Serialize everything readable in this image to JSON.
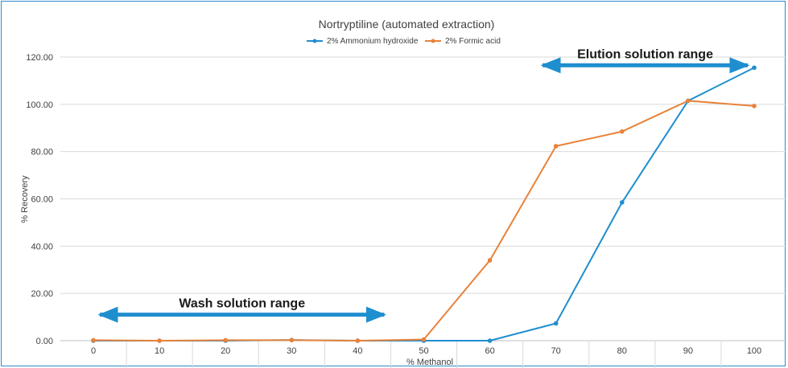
{
  "chart_data": {
    "type": "line",
    "title": "Nortryptiline (automated extraction)",
    "xlabel": "% Methanol",
    "ylabel": "% Recovery",
    "x": [
      0,
      10,
      20,
      30,
      40,
      50,
      60,
      70,
      80,
      90,
      100
    ],
    "ylim": [
      0,
      120
    ],
    "yticks": [
      "0.00",
      "20.00",
      "40.00",
      "60.00",
      "80.00",
      "100.00",
      "120.00"
    ],
    "grid": "horizontal",
    "legend_position": "top-center",
    "series": [
      {
        "name": "2% Ammonium hydroxide",
        "color": "#1f8ecf",
        "values": [
          0.0,
          0.0,
          0.0,
          0.3,
          0.0,
          0.0,
          0.0,
          7.3,
          58.5,
          101.5,
          115.5
        ]
      },
      {
        "name": "2% Formic acid",
        "color": "#e8823a",
        "values": [
          0.2,
          0.0,
          0.2,
          0.2,
          0.0,
          0.5,
          34.0,
          82.3,
          88.5,
          101.5,
          99.3
        ]
      }
    ],
    "annotations": [
      {
        "text": "Wash solution range",
        "x_start": 0,
        "x_end": 45,
        "y": 11,
        "color": "#1f8ecf"
      },
      {
        "text": "Elution solution range",
        "x_start": 67,
        "x_end": 100,
        "y": 116.5,
        "color": "#1f8ecf"
      }
    ]
  }
}
